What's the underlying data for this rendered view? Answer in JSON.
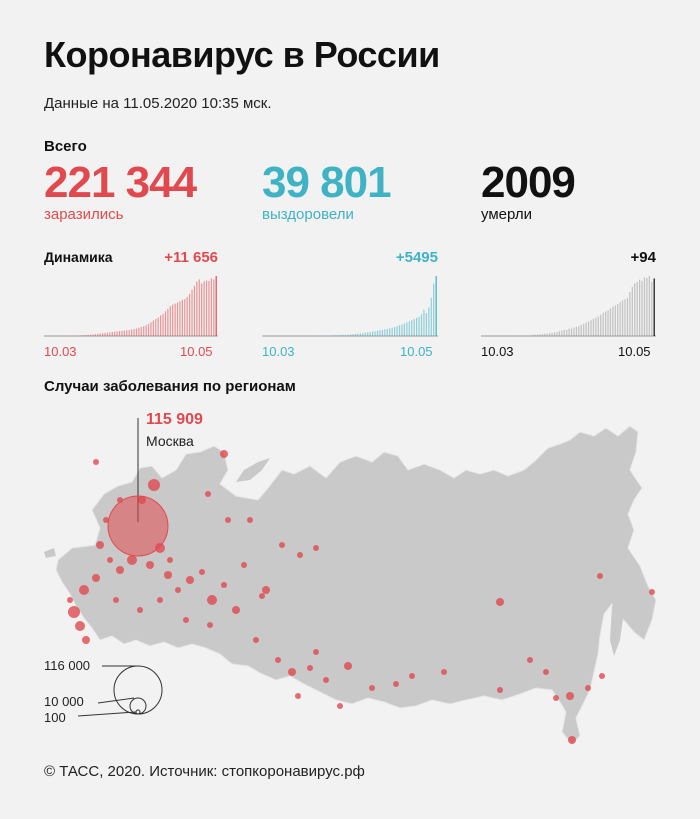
{
  "header": {
    "title": "Коронавирус в России",
    "date": "Данные на 11.05.2020 10:35 мск."
  },
  "totals": {
    "label": "Всего",
    "infected": {
      "value": "221 344",
      "label": "заразились"
    },
    "recovered": {
      "value": "39 801",
      "label": "выздоровели"
    },
    "deaths": {
      "value": "2009",
      "label": "умерли"
    }
  },
  "dynamics": {
    "label": "Динамика",
    "x_start": "10.03",
    "x_end": "10.05"
  },
  "map": {
    "title": "Случаи заболевания по регионам",
    "moscow_value": "115 909",
    "moscow_name": "Москва",
    "legend": [
      "116 000",
      "10 000",
      "100"
    ]
  },
  "footer": {
    "source": "© ТАСС, 2020. Источник: стопкоронавирус.рф"
  },
  "colors": {
    "infected": "#e04a4f",
    "recovered": "#3fb3c4",
    "deaths": "#111111",
    "map_fill": "#c9c9c9"
  },
  "chart_data": [
    {
      "type": "bar",
      "title": "Динамика",
      "series": [
        {
          "name": "заразились",
          "delta_label": "+11 656",
          "last_value": 11656,
          "values": [
            3,
            3,
            4,
            5,
            6,
            8,
            9,
            12,
            18,
            25,
            33,
            50,
            60,
            80,
            100,
            130,
            165,
            185,
            215,
            250,
            300,
            360,
            420,
            480,
            540,
            600,
            650,
            720,
            780,
            820,
            880,
            950,
            1000,
            1050,
            1100,
            1150,
            1250,
            1350,
            1450,
            1600,
            1750,
            1900,
            2100,
            2350,
            2650,
            3000,
            3300,
            3600,
            4000,
            4300,
            4800,
            5300,
            5800,
            6100,
            6300,
            6500,
            6700,
            7000,
            7200,
            7600,
            8200,
            9000,
            9700,
            10600,
            11000,
            10200,
            10600,
            10800,
            10700,
            11200,
            11000,
            11656
          ]
        }
      ],
      "x_start": "10.03",
      "x_end": "10.05"
    },
    {
      "type": "bar",
      "title": "Динамика",
      "series": [
        {
          "name": "выздоровели",
          "delta_label": "+5495",
          "last_value": 5495,
          "values": [
            0,
            0,
            0,
            0,
            0,
            0,
            1,
            1,
            1,
            1,
            2,
            2,
            3,
            3,
            4,
            5,
            6,
            8,
            10,
            12,
            15,
            18,
            22,
            26,
            30,
            35,
            40,
            45,
            50,
            60,
            70,
            80,
            90,
            100,
            110,
            125,
            140,
            160,
            180,
            200,
            230,
            260,
            300,
            330,
            360,
            400,
            440,
            480,
            520,
            560,
            600,
            650,
            700,
            760,
            820,
            900,
            980,
            1050,
            1150,
            1250,
            1350,
            1450,
            1550,
            1650,
            1750,
            2000,
            2400,
            2100,
            2600,
            3500,
            4800,
            5495
          ]
        }
      ],
      "x_start": "10.03",
      "x_end": "10.05"
    },
    {
      "type": "bar",
      "title": "Динамика",
      "series": [
        {
          "name": "умерли",
          "delta_label": "+94",
          "last_value": 94,
          "values": [
            0,
            0,
            0,
            0,
            0,
            0,
            0,
            0,
            0,
            0,
            0,
            0,
            0,
            1,
            0,
            1,
            0,
            1,
            1,
            1,
            1,
            2,
            2,
            2,
            3,
            3,
            4,
            4,
            5,
            5,
            6,
            6,
            8,
            9,
            10,
            10,
            12,
            12,
            14,
            15,
            16,
            18,
            20,
            22,
            24,
            26,
            28,
            30,
            32,
            35,
            38,
            40,
            42,
            45,
            48,
            50,
            52,
            55,
            58,
            60,
            62,
            72,
            80,
            86,
            88,
            92,
            90,
            96,
            95,
            98,
            88,
            94
          ]
        }
      ],
      "x_start": "10.03",
      "x_end": "10.05"
    },
    {
      "type": "scatter",
      "title": "Случаи заболевания по регионам",
      "series": [
        {
          "name": "Москва",
          "value": 115909
        }
      ],
      "legend": [
        116000,
        10000,
        100
      ]
    }
  ]
}
